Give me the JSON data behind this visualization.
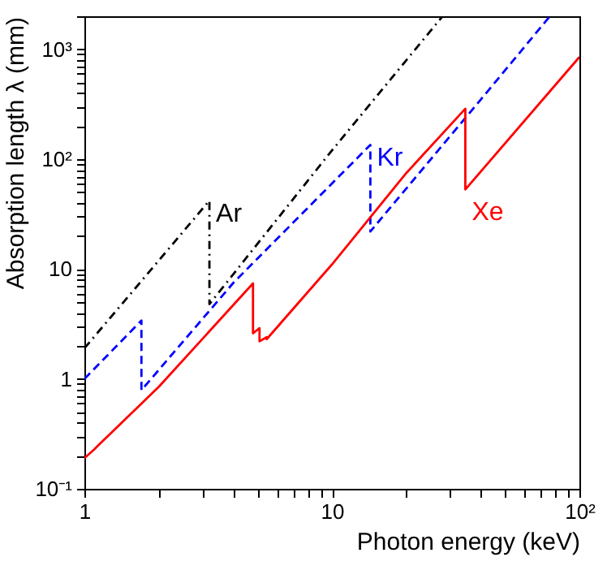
{
  "chart_data": {
    "type": "line",
    "xlabel": "Photon energy (keV)",
    "ylabel": "Absorption length λ (mm)",
    "log": "xy",
    "grid": false,
    "legend": false,
    "marker": "none",
    "xlim": [
      1,
      100
    ],
    "ylim": [
      0.1,
      2000
    ],
    "xticks": [
      1,
      {
        "value": 2,
        "label": null
      },
      {
        "value": 3,
        "label": null
      },
      {
        "value": 4,
        "label": null
      },
      {
        "value": 5,
        "label": null
      },
      {
        "value": 6,
        "label": null
      },
      {
        "value": 7,
        "label": null
      },
      {
        "value": 8,
        "label": null
      },
      {
        "value": 9,
        "label": null
      },
      10,
      {
        "value": 20,
        "label": null
      },
      {
        "value": 30,
        "label": null
      },
      {
        "value": 40,
        "label": null
      },
      {
        "value": 50,
        "label": null
      },
      {
        "value": 60,
        "label": null
      },
      {
        "value": 70,
        "label": null
      },
      {
        "value": 80,
        "label": null
      },
      {
        "value": 90,
        "label": null
      },
      {
        "value": 100,
        "label": "10²"
      }
    ],
    "yticks": [
      {
        "value": 0.1,
        "label": "10⁻¹"
      },
      {
        "value": 0.2,
        "label": null
      },
      {
        "value": 0.3,
        "label": null
      },
      {
        "value": 0.4,
        "label": null
      },
      {
        "value": 0.5,
        "label": null
      },
      {
        "value": 0.6,
        "label": null
      },
      {
        "value": 0.7,
        "label": null
      },
      {
        "value": 0.8,
        "label": null
      },
      {
        "value": 0.9,
        "label": null
      },
      1,
      {
        "value": 2,
        "label": null
      },
      {
        "value": 3,
        "label": null
      },
      {
        "value": 4,
        "label": null
      },
      {
        "value": 5,
        "label": null
      },
      {
        "value": 6,
        "label": null
      },
      {
        "value": 7,
        "label": null
      },
      {
        "value": 8,
        "label": null
      },
      {
        "value": 9,
        "label": null
      },
      10,
      {
        "value": 20,
        "label": null
      },
      {
        "value": 30,
        "label": null
      },
      {
        "value": 40,
        "label": null
      },
      {
        "value": 50,
        "label": null
      },
      {
        "value": 60,
        "label": null
      },
      {
        "value": 70,
        "label": null
      },
      {
        "value": 80,
        "label": null
      },
      {
        "value": 90,
        "label": null
      },
      {
        "value": 100,
        "label": "10²"
      },
      {
        "value": 200,
        "label": null
      },
      {
        "value": 300,
        "label": null
      },
      {
        "value": 400,
        "label": null
      },
      {
        "value": 500,
        "label": null
      },
      {
        "value": 600,
        "label": null
      },
      {
        "value": 700,
        "label": null
      },
      {
        "value": 800,
        "label": null
      },
      {
        "value": 900,
        "label": null
      },
      {
        "value": 1000,
        "label": "10³"
      },
      {
        "value": 2000,
        "label": null
      }
    ],
    "series": [
      {
        "name": "Ar",
        "color": "#000000",
        "line_style": "dotted",
        "x": [
          1,
          2,
          3.2,
          3.2,
          10,
          28
        ],
        "values": [
          1.9,
          12,
          42,
          4.8,
          120,
          2000
        ]
      },
      {
        "name": "Kr",
        "color": "#0000ff",
        "line_style": "dashed",
        "x": [
          1,
          1.7,
          1.7,
          4,
          14.3,
          14.3,
          40,
          76
        ],
        "values": [
          1,
          3.4,
          0.79,
          7.5,
          135,
          22,
          350,
          2000
        ]
      },
      {
        "name": "Xe",
        "color": "#ff0000",
        "line_style": "solid",
        "x": [
          1,
          1.1,
          1.12,
          2,
          4.8,
          4.8,
          5.1,
          5.1,
          5.45,
          5.45,
          10,
          20,
          34.6,
          34.6,
          100
        ],
        "values": [
          0.19,
          0.23,
          0.24,
          0.85,
          7.4,
          2.6,
          2.9,
          2.2,
          2.4,
          2.3,
          11,
          75,
          288,
          53,
          850
        ]
      }
    ]
  }
}
